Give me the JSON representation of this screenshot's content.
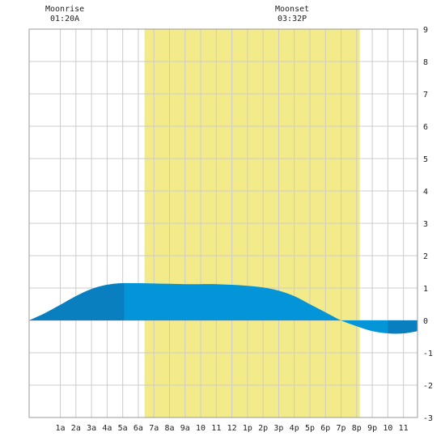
{
  "moonrise": {
    "label": "Moonrise",
    "time": "01:20A"
  },
  "moonset": {
    "label": "Moonset",
    "time": "03:32P"
  },
  "colors": {
    "daylight": "#f3ea8a",
    "tide_night": "#0a7fc0",
    "tide_day": "#0494d8",
    "grid": "#cccccc",
    "axis_text": "#222222"
  },
  "chart_data": {
    "type": "area",
    "x_unit": "hour of day",
    "xlim": [
      -1,
      23.9
    ],
    "ylim": [
      -3,
      9
    ],
    "x_ticks": [
      {
        "hour": 1,
        "label": "1a"
      },
      {
        "hour": 2,
        "label": "2a"
      },
      {
        "hour": 3,
        "label": "3a"
      },
      {
        "hour": 4,
        "label": "4a"
      },
      {
        "hour": 5,
        "label": "5a"
      },
      {
        "hour": 6,
        "label": "6a"
      },
      {
        "hour": 7,
        "label": "7a"
      },
      {
        "hour": 8,
        "label": "8a"
      },
      {
        "hour": 9,
        "label": "9a"
      },
      {
        "hour": 10,
        "label": "10"
      },
      {
        "hour": 11,
        "label": "11"
      },
      {
        "hour": 12,
        "label": "12"
      },
      {
        "hour": 13,
        "label": "1p"
      },
      {
        "hour": 14,
        "label": "2p"
      },
      {
        "hour": 15,
        "label": "3p"
      },
      {
        "hour": 16,
        "label": "4p"
      },
      {
        "hour": 17,
        "label": "5p"
      },
      {
        "hour": 18,
        "label": "6p"
      },
      {
        "hour": 19,
        "label": "7p"
      },
      {
        "hour": 20,
        "label": "8p"
      },
      {
        "hour": 21,
        "label": "9p"
      },
      {
        "hour": 22,
        "label": "10"
      },
      {
        "hour": 23,
        "label": "11"
      }
    ],
    "y_ticks": [
      9,
      8,
      7,
      6,
      5,
      4,
      3,
      2,
      1,
      0,
      -1,
      -2,
      -3
    ],
    "daylight": {
      "start": 6.4,
      "end": 20.2
    },
    "night_shading": [
      {
        "start": -1,
        "end": 5.1
      },
      {
        "start": 22,
        "end": 23.9
      }
    ],
    "tide": [
      {
        "x": -1,
        "y": 0.0
      },
      {
        "x": 0,
        "y": 0.22
      },
      {
        "x": 1,
        "y": 0.48
      },
      {
        "x": 2,
        "y": 0.75
      },
      {
        "x": 3,
        "y": 0.97
      },
      {
        "x": 4,
        "y": 1.1
      },
      {
        "x": 5,
        "y": 1.15
      },
      {
        "x": 6,
        "y": 1.15
      },
      {
        "x": 7,
        "y": 1.14
      },
      {
        "x": 8,
        "y": 1.13
      },
      {
        "x": 9,
        "y": 1.12
      },
      {
        "x": 10,
        "y": 1.12
      },
      {
        "x": 11,
        "y": 1.12
      },
      {
        "x": 12,
        "y": 1.1
      },
      {
        "x": 13,
        "y": 1.07
      },
      {
        "x": 14,
        "y": 1.02
      },
      {
        "x": 15,
        "y": 0.92
      },
      {
        "x": 16,
        "y": 0.75
      },
      {
        "x": 17,
        "y": 0.5
      },
      {
        "x": 18,
        "y": 0.25
      },
      {
        "x": 19,
        "y": 0.0
      },
      {
        "x": 20,
        "y": -0.18
      },
      {
        "x": 21,
        "y": -0.33
      },
      {
        "x": 22,
        "y": -0.4
      },
      {
        "x": 23,
        "y": -0.4
      },
      {
        "x": 23.9,
        "y": -0.33
      }
    ]
  }
}
